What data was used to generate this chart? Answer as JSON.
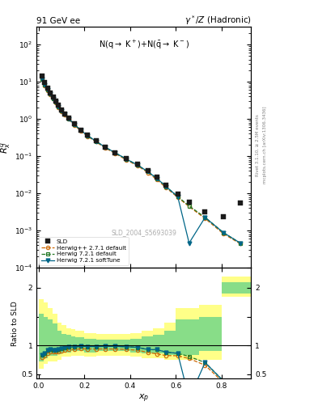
{
  "title_left": "91 GeV ee",
  "title_right": "γ*/Z (Hadronic)",
  "ylabel_main": "$R_x^q$",
  "ylabel_ratio": "Ratio to SLD",
  "xlabel": "$x_p$",
  "annotation": "N(q→ K⁺)+N($\\bar{q}$→ K⁻)",
  "watermark": "SLD_2004_S5693039",
  "ylim_main": [
    0.0001,
    300
  ],
  "ylim_ratio": [
    0.42,
    2.35
  ],
  "xlim": [
    -0.01,
    0.93
  ],
  "sld_x": [
    0.014,
    0.026,
    0.038,
    0.05,
    0.062,
    0.074,
    0.086,
    0.1,
    0.114,
    0.13,
    0.156,
    0.184,
    0.214,
    0.25,
    0.29,
    0.334,
    0.382,
    0.432,
    0.478,
    0.518,
    0.558,
    0.608,
    0.658,
    0.728,
    0.808,
    0.882
  ],
  "sld_y": [
    14.5,
    9.8,
    6.8,
    5.1,
    3.9,
    3.05,
    2.35,
    1.78,
    1.38,
    1.06,
    0.73,
    0.505,
    0.362,
    0.258,
    0.178,
    0.126,
    0.086,
    0.06,
    0.041,
    0.027,
    0.017,
    0.0095,
    0.0057,
    0.0032,
    0.0023,
    0.0055
  ],
  "hpp_x": [
    0.014,
    0.026,
    0.038,
    0.05,
    0.062,
    0.074,
    0.086,
    0.1,
    0.114,
    0.13,
    0.156,
    0.184,
    0.214,
    0.25,
    0.29,
    0.334,
    0.382,
    0.432,
    0.478,
    0.518,
    0.558,
    0.608,
    0.658,
    0.728,
    0.808,
    0.882
  ],
  "hpp_y": [
    11.5,
    8.0,
    5.9,
    4.55,
    3.45,
    2.7,
    2.08,
    1.62,
    1.27,
    0.99,
    0.68,
    0.475,
    0.34,
    0.242,
    0.167,
    0.118,
    0.08,
    0.055,
    0.036,
    0.023,
    0.014,
    0.0078,
    0.0044,
    0.0021,
    0.00082,
    0.00044
  ],
  "h721_x": [
    0.014,
    0.026,
    0.038,
    0.05,
    0.062,
    0.074,
    0.086,
    0.1,
    0.114,
    0.13,
    0.156,
    0.184,
    0.214,
    0.25,
    0.29,
    0.334,
    0.382,
    0.432,
    0.478,
    0.518,
    0.558,
    0.608,
    0.658,
    0.728,
    0.808,
    0.882
  ],
  "h721_y": [
    12.0,
    8.4,
    6.2,
    4.75,
    3.6,
    2.82,
    2.18,
    1.69,
    1.33,
    1.03,
    0.71,
    0.496,
    0.355,
    0.253,
    0.175,
    0.124,
    0.084,
    0.058,
    0.038,
    0.025,
    0.015,
    0.0082,
    0.0046,
    0.00225,
    0.00088,
    0.00046
  ],
  "h721s_x": [
    0.014,
    0.026,
    0.038,
    0.05,
    0.062,
    0.074,
    0.086,
    0.1,
    0.114,
    0.13,
    0.156,
    0.184,
    0.214,
    0.25,
    0.29,
    0.334,
    0.382,
    0.432,
    0.478,
    0.518,
    0.558,
    0.608,
    0.658,
    0.728,
    0.808,
    0.882
  ],
  "h721s_y": [
    12.0,
    8.4,
    6.2,
    4.75,
    3.6,
    2.82,
    2.18,
    1.69,
    1.33,
    1.03,
    0.71,
    0.496,
    0.355,
    0.253,
    0.175,
    0.124,
    0.084,
    0.058,
    0.038,
    0.025,
    0.015,
    0.0082,
    0.00046,
    0.00225,
    0.00088,
    0.00046
  ],
  "band_x_edges": [
    0.0,
    0.02,
    0.04,
    0.06,
    0.08,
    0.1,
    0.12,
    0.14,
    0.16,
    0.2,
    0.25,
    0.3,
    0.35,
    0.4,
    0.45,
    0.5,
    0.55,
    0.6,
    0.7,
    0.8,
    0.93
  ],
  "band_yellow_lo": [
    0.6,
    0.68,
    0.72,
    0.72,
    0.75,
    0.8,
    0.8,
    0.82,
    0.82,
    0.8,
    0.82,
    0.82,
    0.82,
    0.8,
    0.78,
    0.78,
    0.75,
    0.75,
    0.75,
    1.85,
    1.85
  ],
  "band_yellow_hi": [
    1.8,
    1.75,
    1.65,
    1.55,
    1.4,
    1.35,
    1.3,
    1.28,
    1.25,
    1.22,
    1.2,
    1.2,
    1.2,
    1.22,
    1.25,
    1.3,
    1.4,
    1.65,
    1.7,
    2.2,
    2.2
  ],
  "band_green_lo": [
    0.72,
    0.78,
    0.82,
    0.82,
    0.85,
    0.88,
    0.88,
    0.9,
    0.9,
    0.88,
    0.9,
    0.9,
    0.9,
    0.88,
    0.86,
    0.86,
    0.84,
    0.84,
    0.9,
    1.9,
    1.9
  ],
  "band_green_hi": [
    1.55,
    1.5,
    1.45,
    1.38,
    1.25,
    1.2,
    1.18,
    1.16,
    1.14,
    1.12,
    1.1,
    1.1,
    1.1,
    1.12,
    1.15,
    1.18,
    1.25,
    1.45,
    1.5,
    2.1,
    2.1
  ],
  "color_sld": "#1a1a1a",
  "color_hpp": "#cc6600",
  "color_h721": "#227722",
  "color_h721s": "#006688",
  "color_yellow": "#ffff88",
  "color_green": "#88dd88",
  "bg_color": "#ffffff"
}
